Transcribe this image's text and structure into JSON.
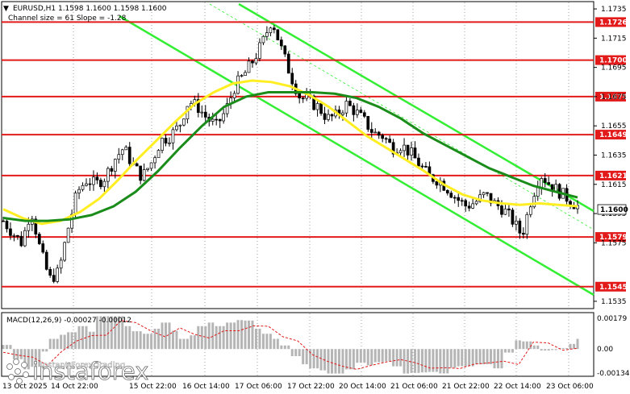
{
  "header": {
    "symbol_line": "EURUSD,H1  1.1598 1.1600 1.1598 1.1600",
    "channel_line": "Channel size = 61 Slope = -1.28"
  },
  "watermark": {
    "brand": "instaforex",
    "tagline": "Instant Forex Trading"
  },
  "chart_data": {
    "type": "candlestick",
    "symbol": "EURUSD",
    "timeframe": "H1",
    "last_price": "1.1600",
    "ylim": [
      1.153,
      1.174
    ],
    "y_ticks": [
      "1.1735",
      "1.1715",
      "1.1695",
      "1.1675",
      "1.1655",
      "1.1635",
      "1.1615",
      "1.1595",
      "1.1575",
      "1.1535"
    ],
    "x_ticks": [
      "13 Oct 2025",
      "14 Oct 22:00",
      "15 Oct 22:00",
      "16 Oct 14:00",
      "17 Oct 06:00",
      "17 Oct 22:00",
      "20 Oct 14:00",
      "21 Oct 06:00",
      "21 Oct 22:00",
      "22 Oct 14:00",
      "23 Oct 06:00"
    ],
    "levels": [
      {
        "value": 1.1726,
        "label": "1.1726"
      },
      {
        "value": 1.17,
        "label": "1.1700"
      },
      {
        "value": 1.1675,
        "label": "1.1675"
      },
      {
        "value": 1.1649,
        "label": "1.1649"
      },
      {
        "value": 1.1621,
        "label": "1.1621"
      },
      {
        "value": 1.1579,
        "label": "1.1579"
      },
      {
        "value": 1.1545,
        "label": "1.1545"
      }
    ],
    "price_path": [
      1.159,
      1.1582,
      1.1575,
      1.1598,
      1.157,
      1.155,
      1.1555,
      1.1585,
      1.161,
      1.1618,
      1.1615,
      1.162,
      1.1632,
      1.164,
      1.1628,
      1.162,
      1.163,
      1.1645,
      1.1648,
      1.1655,
      1.1672,
      1.1668,
      1.166,
      1.1655,
      1.1665,
      1.1682,
      1.169,
      1.17,
      1.1712,
      1.1728,
      1.1708,
      1.169,
      1.1675,
      1.1672,
      1.1668,
      1.166,
      1.1662,
      1.167,
      1.1665,
      1.1658,
      1.165,
      1.1648,
      1.164,
      1.1642,
      1.1636,
      1.1628,
      1.162,
      1.1618,
      1.1612,
      1.1605,
      1.16,
      1.1603,
      1.1608,
      1.1602,
      1.1598,
      1.159,
      1.158,
      1.1605,
      1.1622,
      1.1615,
      1.161,
      1.1605,
      1.16
    ],
    "ma_fast": [
      1.1598,
      1.1592,
      1.1588,
      1.159,
      1.1596,
      1.1605,
      1.1618,
      1.1632,
      1.1645,
      1.1658,
      1.167,
      1.1678,
      1.1684,
      1.1686,
      1.1685,
      1.1682,
      1.1676,
      1.1668,
      1.1658,
      1.1648,
      1.164,
      1.1632,
      1.1624,
      1.1615,
      1.1608,
      1.1604,
      1.1602,
      1.1601,
      1.1602,
      1.1601,
      1.16
    ],
    "ma_slow": [
      1.1592,
      1.159,
      1.159,
      1.1591,
      1.1594,
      1.16,
      1.161,
      1.1624,
      1.164,
      1.1655,
      1.1668,
      1.1675,
      1.1678,
      1.1678,
      1.1678,
      1.1677,
      1.1674,
      1.1668,
      1.166,
      1.165,
      1.1642,
      1.1634,
      1.1626,
      1.162,
      1.1614,
      1.161,
      1.1606
    ],
    "macd": {
      "label": "MACD(12,26,9) -0.00027 -0.00012",
      "ylim": [
        -0.00134,
        0.00179
      ],
      "y_ticks": [
        "0.00179",
        "0.00",
        "-0.00134"
      ]
    }
  }
}
